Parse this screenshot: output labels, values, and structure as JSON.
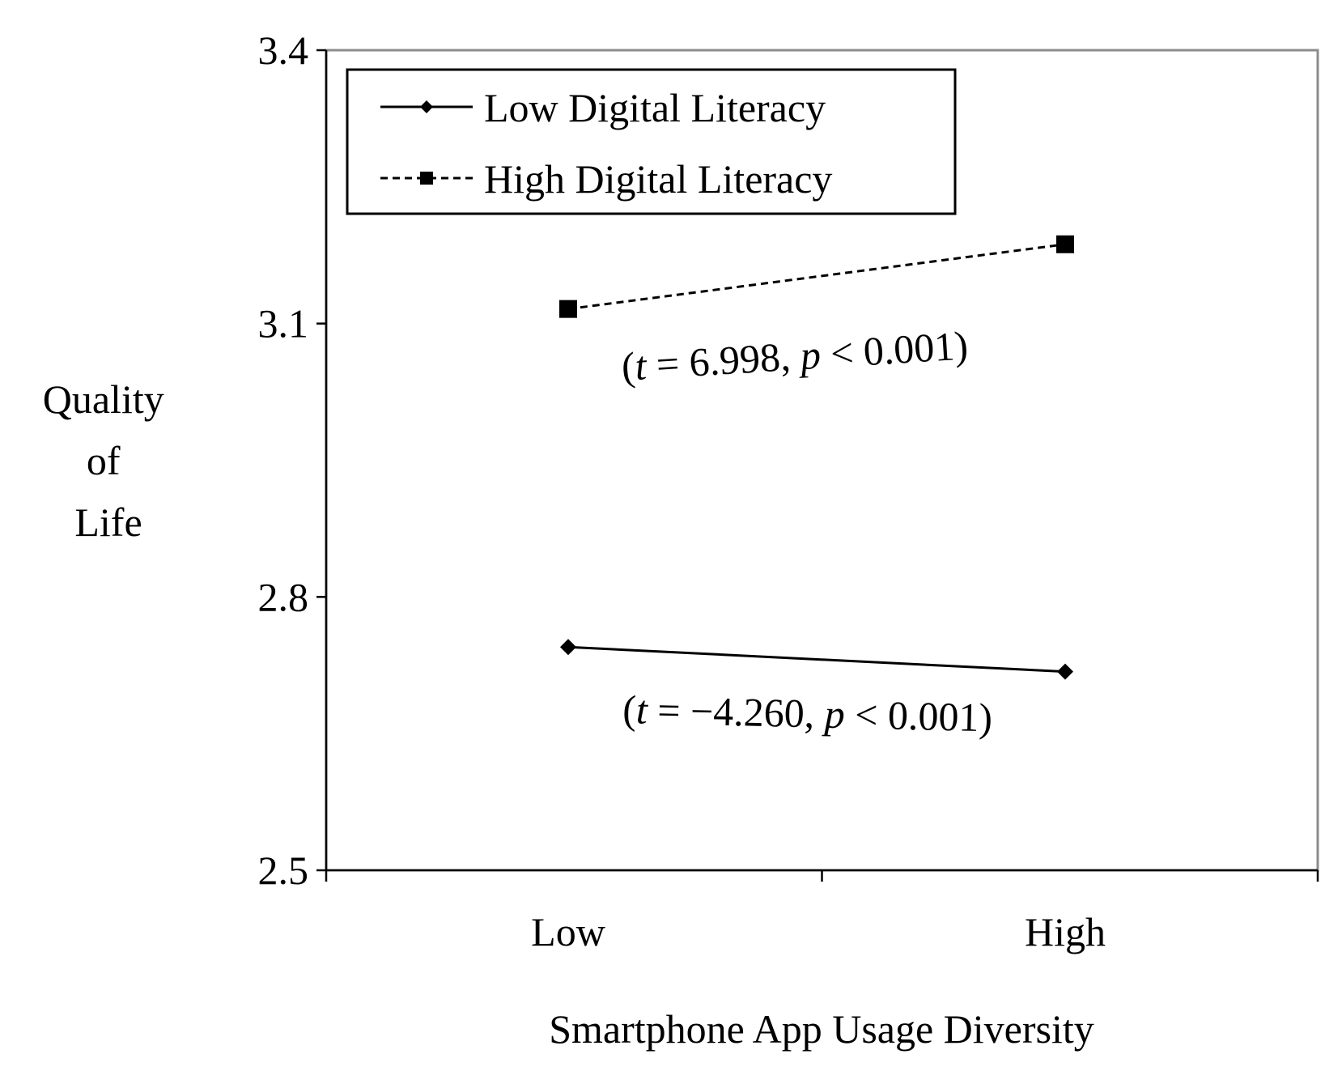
{
  "chart_data": {
    "type": "line",
    "title": "",
    "xlabel": "Smartphone App Usage Diversity",
    "ylabel_lines": [
      "Quality",
      "of",
      "Life"
    ],
    "categories": [
      "Low",
      "High"
    ],
    "ylim": [
      2.5,
      3.4
    ],
    "yticks": [
      "2.5",
      "2.8",
      "3.1",
      "3.4"
    ],
    "grid": false,
    "legend_position": "top-left",
    "series": [
      {
        "name": "Low Digital Literacy",
        "values": [
          2.745,
          2.718
        ],
        "line_style": "solid",
        "marker": "diamond",
        "color": "#000000",
        "annotation": {
          "prefix": "(",
          "t_symbol": "t",
          "middle": " = −4.260, ",
          "p_symbol": "p",
          "suffix": " < 0.001)"
        }
      },
      {
        "name": "High Digital Literacy",
        "values": [
          3.116,
          3.187
        ],
        "line_style": "dashed",
        "marker": "square",
        "color": "#000000",
        "annotation": {
          "prefix": "(",
          "t_symbol": "t",
          "middle": " = 6.998, ",
          "p_symbol": "p",
          "suffix": " < 0.001)"
        }
      }
    ]
  }
}
